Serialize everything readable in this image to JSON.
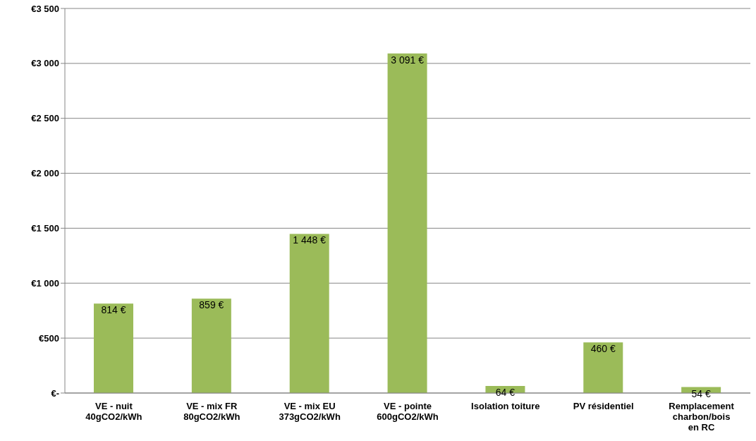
{
  "chart_data": {
    "type": "bar",
    "categories": [
      "VE - nuit\n40gCO2/kWh",
      "VE - mix FR\n80gCO2/kWh",
      "VE - mix EU\n373gCO2/kWh",
      "VE - pointe\n600gCO2/kWh",
      "Isolation toiture",
      "PV résidentiel",
      "Remplacement\ncharbon/bois\nen RC"
    ],
    "values": [
      814,
      859,
      1448,
      3091,
      64,
      460,
      54
    ],
    "value_labels": [
      "814 €",
      "859 €",
      "1 448 €",
      "3 091 €",
      "64 €",
      "460 €",
      "54 €"
    ],
    "color": "#9bbb59",
    "ylim": [
      0,
      3500
    ],
    "yticks": [
      {
        "value": 0,
        "label": "€-"
      },
      {
        "value": 500,
        "label": "€500"
      },
      {
        "value": 1000,
        "label": "€1 000"
      },
      {
        "value": 1500,
        "label": "€1 500"
      },
      {
        "value": 2000,
        "label": "€2 000"
      },
      {
        "value": 2500,
        "label": "€2 500"
      },
      {
        "value": 3000,
        "label": "€3 000"
      },
      {
        "value": 3500,
        "label": "€3 500"
      }
    ],
    "grid": "y"
  }
}
